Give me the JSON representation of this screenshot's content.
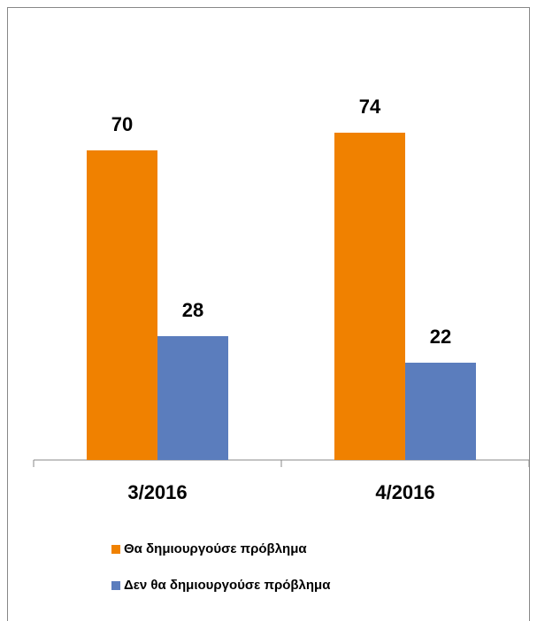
{
  "chart_data": {
    "type": "bar",
    "categories": [
      "3/2016",
      "4/2016"
    ],
    "series": [
      {
        "name": "Θα δημιουργούσε πρόβλημα",
        "color": "#f08100",
        "values": [
          70,
          74
        ]
      },
      {
        "name": "Δεν θα δημιουργούσε πρόβλημα",
        "color": "#5b7dbd",
        "values": [
          28,
          22
        ]
      }
    ]
  }
}
